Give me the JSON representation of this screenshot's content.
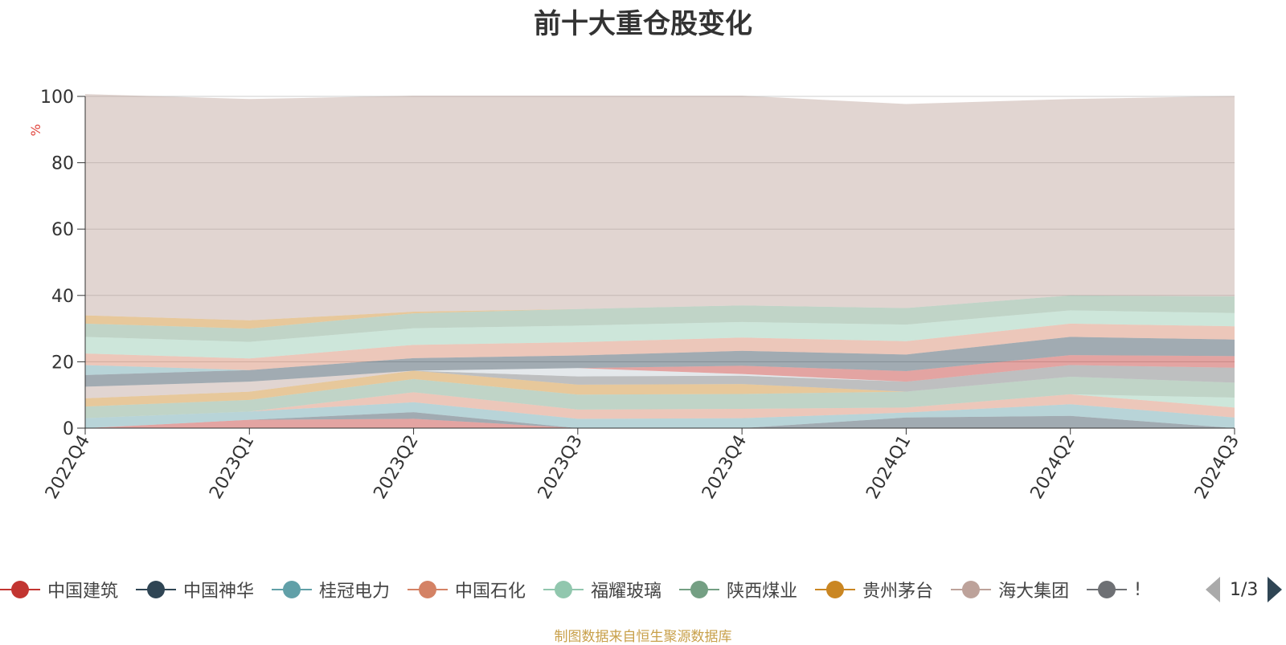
{
  "chart_data": {
    "type": "area",
    "title": "前十大重仓股变化",
    "ylabel": "%",
    "ylim": [
      0,
      100
    ],
    "yticks": [
      0,
      20,
      40,
      60,
      80,
      100
    ],
    "stacked": true,
    "grid": true,
    "x": [
      "2022Q4",
      "2023Q1",
      "2023Q2",
      "2023Q3",
      "2023Q4",
      "2024Q1",
      "2024Q2",
      "2024Q3"
    ],
    "series": [
      {
        "name": "中国建筑",
        "color": "#c23531",
        "values": [
          0,
          2.5,
          2.8,
          0,
          0,
          0,
          0,
          0
        ]
      },
      {
        "name": "中国神华",
        "color": "#2f4554",
        "values": [
          0,
          0,
          2.0,
          0,
          0,
          3.2,
          3.7,
          0
        ]
      },
      {
        "name": "桂冠电力",
        "color": "#61a0a8",
        "values": [
          3.0,
          2.5,
          3.0,
          2.8,
          3.0,
          1.5,
          3.5,
          3.2
        ]
      },
      {
        "name": "中国石化",
        "color": "#d48265",
        "values": [
          0,
          0,
          3.0,
          2.8,
          2.8,
          1.5,
          3.0,
          3.0
        ]
      },
      {
        "name": "福耀玻璃",
        "color": "#91c7ae",
        "values": [
          0,
          0,
          0,
          0,
          0,
          0,
          0,
          3.0
        ]
      },
      {
        "name": "陕西煤业",
        "color": "#749f83",
        "values": [
          3.5,
          3.5,
          4.0,
          4.5,
          4.5,
          4.8,
          5.3,
          4.5
        ]
      },
      {
        "name": "贵州茅台",
        "color": "#ca8622",
        "values": [
          2.5,
          2.5,
          2.5,
          3.0,
          3.0,
          0,
          0,
          0
        ]
      },
      {
        "name": "海大集团",
        "color": "#bda29a",
        "values": [
          3.5,
          3.0,
          0,
          0,
          0,
          0,
          0,
          0
        ]
      },
      {
        "name": "",
        "color": "#6e7074",
        "values": [
          0,
          0,
          0,
          2.5,
          2.5,
          3.0,
          3.5,
          4.5
        ]
      },
      {
        "name": "",
        "color": "#c4ccd3",
        "values": [
          0,
          0,
          0,
          2.5,
          0.5,
          0,
          0,
          0
        ]
      },
      {
        "name": "",
        "color": "#c23531",
        "values": [
          0,
          0,
          0,
          0,
          2.5,
          3.2,
          3.0,
          3.5
        ]
      },
      {
        "name": "",
        "color": "#2f4554",
        "values": [
          3.5,
          3.5,
          3.8,
          3.8,
          4.5,
          5.0,
          5.5,
          5.0
        ]
      },
      {
        "name": "",
        "color": "#61a0a8",
        "values": [
          3.0,
          0,
          0,
          0,
          0,
          0,
          0,
          0
        ]
      },
      {
        "name": "",
        "color": "#d48265",
        "values": [
          3.5,
          3.5,
          4.0,
          4.0,
          4.0,
          4.0,
          4.0,
          4.0
        ]
      },
      {
        "name": "",
        "color": "#91c7ae",
        "values": [
          5.0,
          5.0,
          5.0,
          5.0,
          4.7,
          5.0,
          4.0,
          4.0
        ]
      },
      {
        "name": "",
        "color": "#749f83",
        "values": [
          4.0,
          4.0,
          4.5,
          5.0,
          5.0,
          5.0,
          4.5,
          5.0
        ]
      },
      {
        "name": "",
        "color": "#ca8622",
        "values": [
          2.5,
          2.5,
          0.5,
          0,
          0,
          0,
          0,
          0
        ]
      },
      {
        "name": "",
        "color": "#bda29a",
        "values": [
          66.7,
          66.7,
          65.1,
          64.3,
          63.2,
          61.5,
          59.2,
          60.4
        ]
      }
    ]
  },
  "legend": {
    "items": [
      {
        "label": "中国建筑",
        "color": "#c23531"
      },
      {
        "label": "中国神华",
        "color": "#2f4554"
      },
      {
        "label": "桂冠电力",
        "color": "#61a0a8"
      },
      {
        "label": "中国石化",
        "color": "#d48265"
      },
      {
        "label": "福耀玻璃",
        "color": "#91c7ae"
      },
      {
        "label": "陕西煤业",
        "color": "#749f83"
      },
      {
        "label": "贵州茅台",
        "color": "#ca8622"
      },
      {
        "label": "海大集团",
        "color": "#bda29a"
      },
      {
        "label": "!",
        "color": "#6e7074"
      }
    ],
    "page_indicator": "1/3"
  },
  "source_note": "制图数据来自恒生聚源数据库"
}
